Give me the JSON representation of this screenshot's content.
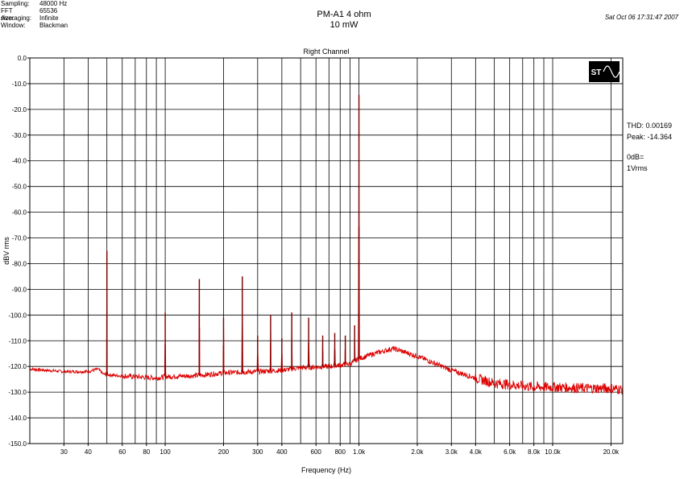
{
  "meta": {
    "items": [
      {
        "label": "Sampling:",
        "value": "48000 Hz"
      },
      {
        "label": "FFT size:",
        "value": "65536"
      },
      {
        "label": "Averaging:",
        "value": "Infinite"
      },
      {
        "label": "Window:",
        "value": "Blackman"
      }
    ],
    "title": "PM-A1  4 ohm",
    "subtitle": "10 mW",
    "datestamp": "Sat Oct 06 17:31:47 2007"
  },
  "side": {
    "thd": "THD: 0.00169",
    "peak": "Peak: -14.364",
    "zero_db": "0dB=",
    "ref": "1Vrms"
  },
  "logo": {
    "text": "ST"
  },
  "chart_data": {
    "type": "line",
    "title": "Right Channel",
    "xlabel": "Frequency (Hz)",
    "ylabel": "dBV rms",
    "x_scale": "log",
    "xlim": [
      20,
      23000
    ],
    "ylim": [
      -150,
      0
    ],
    "grid": true,
    "line_color": "#dd0000",
    "x_ticks": [
      {
        "v": 30,
        "label": "30"
      },
      {
        "v": 40,
        "label": "40"
      },
      {
        "v": 60,
        "label": "60"
      },
      {
        "v": 80,
        "label": "80"
      },
      {
        "v": 100,
        "label": "100"
      },
      {
        "v": 200,
        "label": "200"
      },
      {
        "v": 300,
        "label": "300"
      },
      {
        "v": 400,
        "label": "400"
      },
      {
        "v": 600,
        "label": "600"
      },
      {
        "v": 800,
        "label": "800"
      },
      {
        "v": 1000,
        "label": "1.0k"
      },
      {
        "v": 2000,
        "label": "2.0k"
      },
      {
        "v": 3000,
        "label": "3.0k"
      },
      {
        "v": 4000,
        "label": "4.0k"
      },
      {
        "v": 6000,
        "label": "6.0k"
      },
      {
        "v": 8000,
        "label": "8.0k"
      },
      {
        "v": 10000,
        "label": "10.0k"
      },
      {
        "v": 20000,
        "label": "20.0k"
      }
    ],
    "x_grid": [
      30,
      40,
      50,
      60,
      70,
      80,
      90,
      100,
      200,
      300,
      400,
      500,
      600,
      700,
      800,
      900,
      1000,
      2000,
      3000,
      4000,
      5000,
      6000,
      7000,
      8000,
      9000,
      10000,
      20000
    ],
    "y_ticks": [
      {
        "v": 0,
        "label": "0.0"
      },
      {
        "v": -10,
        "label": "-10.0"
      },
      {
        "v": -20,
        "label": "-20.0"
      },
      {
        "v": -30,
        "label": "-30.0"
      },
      {
        "v": -40,
        "label": "-40.0"
      },
      {
        "v": -50,
        "label": "-50.0"
      },
      {
        "v": -60,
        "label": "-60.0"
      },
      {
        "v": -70,
        "label": "-70.0"
      },
      {
        "v": -80,
        "label": "-80.0"
      },
      {
        "v": -90,
        "label": "-90.0"
      },
      {
        "v": -100,
        "label": "-100.0"
      },
      {
        "v": -110,
        "label": "-110.0"
      },
      {
        "v": -120,
        "label": "-120.0"
      },
      {
        "v": -130,
        "label": "-130.0"
      },
      {
        "v": -140,
        "label": "-140.0"
      },
      {
        "v": -150,
        "label": "-150.0"
      }
    ],
    "noise_floor": [
      [
        20,
        -121
      ],
      [
        30,
        -122
      ],
      [
        40,
        -122
      ],
      [
        45,
        -121
      ],
      [
        48,
        -123
      ],
      [
        55,
        -123.5
      ],
      [
        70,
        -124
      ],
      [
        90,
        -124.5
      ],
      [
        100,
        -124
      ],
      [
        150,
        -123.5
      ],
      [
        200,
        -122.5
      ],
      [
        300,
        -122
      ],
      [
        400,
        -121.5
      ],
      [
        500,
        -120.5
      ],
      [
        700,
        -120
      ],
      [
        900,
        -119
      ],
      [
        1000,
        -117
      ],
      [
        1200,
        -115
      ],
      [
        1500,
        -113
      ],
      [
        2000,
        -116
      ],
      [
        2500,
        -119
      ],
      [
        3000,
        -121.5
      ],
      [
        4000,
        -124.5
      ],
      [
        5000,
        -126.5
      ],
      [
        6000,
        -127
      ],
      [
        8000,
        -128
      ],
      [
        10000,
        -128
      ],
      [
        15000,
        -128.5
      ],
      [
        20000,
        -128.5
      ],
      [
        23000,
        -129
      ]
    ],
    "peaks": [
      {
        "f": 50,
        "db": -75
      },
      {
        "f": 100,
        "db": -99
      },
      {
        "f": 150,
        "db": -86
      },
      {
        "f": 200,
        "db": -101
      },
      {
        "f": 250,
        "db": -85
      },
      {
        "f": 300,
        "db": -108
      },
      {
        "f": 350,
        "db": -100
      },
      {
        "f": 400,
        "db": -109
      },
      {
        "f": 450,
        "db": -99
      },
      {
        "f": 550,
        "db": -101
      },
      {
        "f": 650,
        "db": -108
      },
      {
        "f": 750,
        "db": -107
      },
      {
        "f": 850,
        "db": -108
      },
      {
        "f": 950,
        "db": -104
      },
      {
        "f": 1000,
        "db": -14.364
      }
    ]
  }
}
